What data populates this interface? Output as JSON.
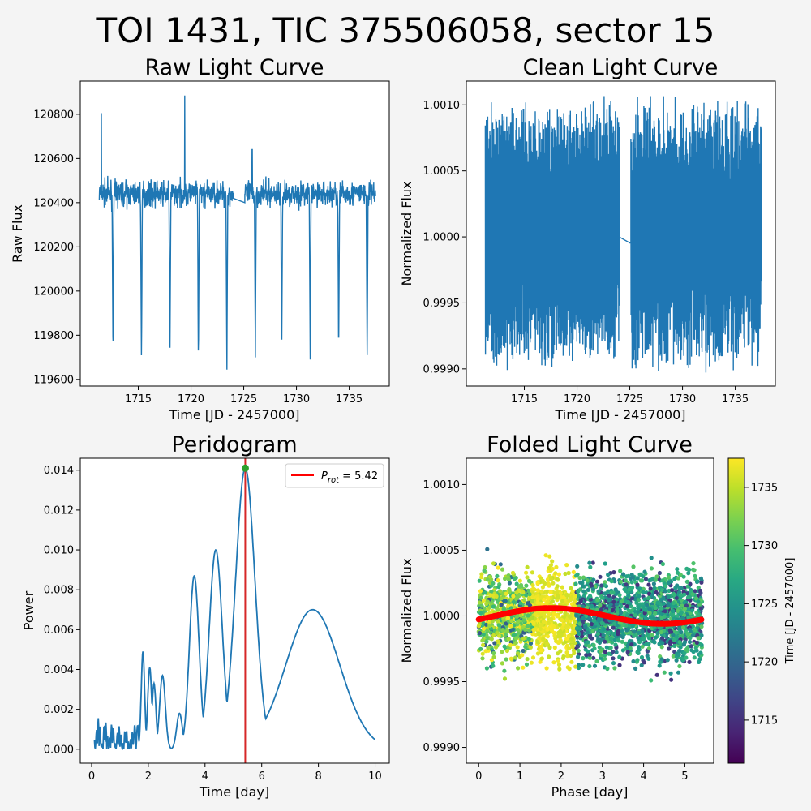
{
  "figure": {
    "suptitle": "TOI 1431, TIC 375506058, sector 15",
    "background": "#f4f4f4"
  },
  "colors": {
    "line": "#1f77b4",
    "model": "#ff0000",
    "marker": "#2ca02c",
    "period_line": "#d62728"
  },
  "chart_data": [
    {
      "id": "raw",
      "type": "line",
      "title": "Raw Light Curve",
      "xlabel": "Time [JD - 2457000]",
      "ylabel": "Raw Flux",
      "xlim": [
        1709.5,
        1738.8
      ],
      "ylim": [
        119570,
        120950
      ],
      "xticks": [
        1715,
        1720,
        1725,
        1730,
        1735
      ],
      "yticks": [
        119600,
        119800,
        120000,
        120200,
        120400,
        120600,
        120800
      ],
      "time_ranges": [
        [
          1711.3,
          1724.0
        ],
        [
          1725.1,
          1737.5
        ]
      ],
      "baseline": 120440,
      "scatter_range": [
        120300,
        120600
      ],
      "transit_times": [
        1712.6,
        1715.3,
        1718.0,
        1720.7,
        1723.4,
        1726.1,
        1728.6,
        1731.3,
        1734.0,
        1736.7
      ],
      "transit_depths": [
        119690,
        119680,
        119700,
        119660,
        119640,
        119700,
        119690,
        119690,
        119700,
        119710
      ],
      "spikes": [
        [
          1711.5,
          120805
        ],
        [
          1719.4,
          120885
        ],
        [
          1725.8,
          120640
        ]
      ]
    },
    {
      "id": "clean",
      "type": "line",
      "title": "Clean Light Curve",
      "xlabel": "Time [JD - 2457000]",
      "ylabel": "Normalized Flux",
      "xlim": [
        1709.5,
        1738.8
      ],
      "ylim": [
        0.99887,
        1.00118
      ],
      "xticks": [
        1715,
        1720,
        1725,
        1730,
        1735
      ],
      "yticks": [
        0.999,
        0.9995,
        1.0,
        1.0005,
        1.001
      ],
      "ytick_labels": [
        "0.9990",
        "0.9995",
        "1.0000",
        "1.0005",
        "1.0010"
      ],
      "time_ranges": [
        [
          1711.3,
          1724.0
        ],
        [
          1725.1,
          1737.5
        ]
      ],
      "envelope_high": 1.00108,
      "envelope_low": 0.99895
    },
    {
      "id": "periodogram",
      "type": "line",
      "title": "Peridogram",
      "xlabel": "Time [day]",
      "ylabel": "Power",
      "xlim": [
        -0.4,
        10.5
      ],
      "ylim": [
        -0.0007,
        0.0146
      ],
      "xticks": [
        0,
        2,
        4,
        6,
        8,
        10
      ],
      "yticks": [
        0.0,
        0.002,
        0.004,
        0.006,
        0.008,
        0.01,
        0.012,
        0.014
      ],
      "ytick_labels": [
        "0.000",
        "0.002",
        "0.004",
        "0.006",
        "0.008",
        "0.010",
        "0.012",
        "0.014"
      ],
      "peak_period": 5.42,
      "peak_power": 0.0141,
      "legend_label": "P",
      "legend_sub": "rot",
      "legend_value": " = 5.42",
      "legend_position": "top-right",
      "peaks": [
        {
          "x": 1.81,
          "y": 0.0049,
          "w": 0.06
        },
        {
          "x": 2.05,
          "y": 0.0041,
          "w": 0.07
        },
        {
          "x": 2.2,
          "y": 0.0033,
          "w": 0.07
        },
        {
          "x": 2.5,
          "y": 0.0037,
          "w": 0.1
        },
        {
          "x": 3.1,
          "y": 0.0018,
          "w": 0.1
        },
        {
          "x": 3.62,
          "y": 0.0087,
          "w": 0.17
        },
        {
          "x": 4.38,
          "y": 0.01,
          "w": 0.23
        },
        {
          "x": 5.42,
          "y": 0.0141,
          "w": 0.34
        },
        {
          "x": 7.8,
          "y": 0.007,
          "w": 0.95
        }
      ]
    },
    {
      "id": "folded",
      "type": "scatter",
      "title": "Folded Light Curve",
      "xlabel": "Phase [day]",
      "ylabel": "Normalized Flux",
      "xlim": [
        -0.3,
        5.7
      ],
      "ylim": [
        0.99888,
        1.0012
      ],
      "xticks": [
        0,
        1,
        2,
        3,
        4,
        5
      ],
      "yticks": [
        0.999,
        0.9995,
        1.0,
        1.0005,
        1.001
      ],
      "ytick_labels": [
        "0.9990",
        "0.9995",
        "1.0000",
        "1.0005",
        "1.0010"
      ],
      "phase_range": [
        0,
        5.42
      ],
      "model_amplitude": 6e-05,
      "model_phase": 1.75,
      "colorbar": {
        "label": "Time [JD - 2457000]",
        "range": [
          1711.3,
          1737.5
        ],
        "ticks": [
          1715,
          1720,
          1725,
          1730,
          1735
        ],
        "cmap": "viridis"
      }
    }
  ]
}
